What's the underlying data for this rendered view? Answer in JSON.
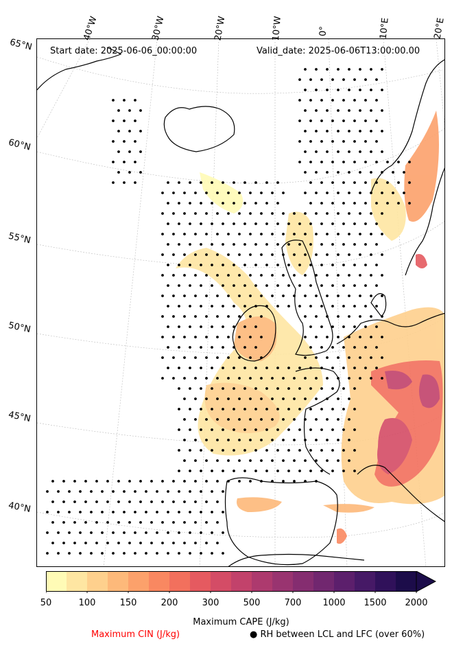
{
  "header": {
    "start_date": "Start date: 2025-06-06_00:00:00",
    "valid_date": "Valid_date: 2025-06-06T13:00:00.00"
  },
  "map": {
    "projection": "lambert-conformal",
    "region": "North-East Atlantic and Western Europe",
    "lat_labels": [
      "65°N",
      "60°N",
      "55°N",
      "50°N",
      "45°N",
      "40°N"
    ],
    "lon_labels": [
      "40°W",
      "30°W",
      "20°W",
      "10°W",
      "0°",
      "10°E",
      "20°E"
    ],
    "gridline_style": "dotted-grey",
    "coastline_color": "#000000",
    "dot_marker_meaning": "RH between LCL and LFC (over 60%)"
  },
  "colorbar": {
    "tick_labels": [
      "50",
      "100",
      "150",
      "200",
      "300",
      "500",
      "700",
      "1000",
      "1500",
      "2000"
    ],
    "colors": [
      "#fffbb6",
      "#fee6a2",
      "#fed08d",
      "#fdb97a",
      "#fca16b",
      "#f98861",
      "#f2705d",
      "#e55a60",
      "#d44c66",
      "#c2426b",
      "#ad3a6e",
      "#993470",
      "#852d70",
      "#71276f",
      "#5c1f6c",
      "#461966",
      "#30115a",
      "#1c0c4a"
    ],
    "cmap_name": "magma_r",
    "extend": "max",
    "label": "Maximum CAPE (J/kg)"
  },
  "legend": {
    "cin_label": "Maximum CIN (J/kg)",
    "cin_color": "#ff0000",
    "rh_marker": "●",
    "rh_label": "RH between LCL and LFC (over 60%)"
  }
}
